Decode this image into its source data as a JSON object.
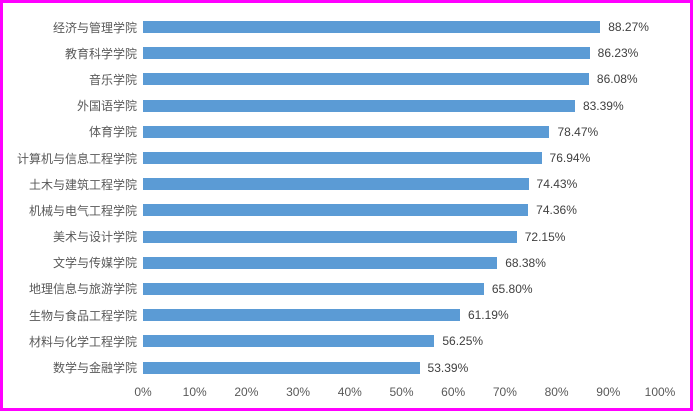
{
  "frame": {
    "border_color": "#FF00FF",
    "background_color": "#FFFFFF"
  },
  "chart_data": {
    "type": "bar",
    "orientation": "horizontal",
    "title": "",
    "xlabel": "",
    "ylabel": "",
    "categories": [
      "经济与管理学院",
      "教育科学学院",
      "音乐学院",
      "外国语学院",
      "体育学院",
      "计算机与信息工程学院",
      "土木与建筑工程学院",
      "机械与电气工程学院",
      "美术与设计学院",
      "文学与传媒学院",
      "地理信息与旅游学院",
      "生物与食品工程学院",
      "材料与化学工程学院",
      "数学与金融学院"
    ],
    "values": [
      88.27,
      86.23,
      86.08,
      83.39,
      78.47,
      76.94,
      74.43,
      74.36,
      72.15,
      68.38,
      65.8,
      61.19,
      56.25,
      53.39
    ],
    "value_labels": [
      "88.27%",
      "86.23%",
      "86.08%",
      "83.39%",
      "78.47%",
      "76.94%",
      "74.43%",
      "74.36%",
      "72.15%",
      "68.38%",
      "65.80%",
      "61.19%",
      "56.25%",
      "53.39%"
    ],
    "x_tick_labels": [
      "0%",
      "10%",
      "20%",
      "30%",
      "40%",
      "50%",
      "60%",
      "70%",
      "80%",
      "90%",
      "100%"
    ],
    "xlim": [
      0,
      100
    ],
    "grid": false,
    "legend_position": "none",
    "bar_color": "#5B9BD5",
    "category_text_color": "#595959",
    "value_text_color": "#404040",
    "axis_text_color": "#595959"
  }
}
